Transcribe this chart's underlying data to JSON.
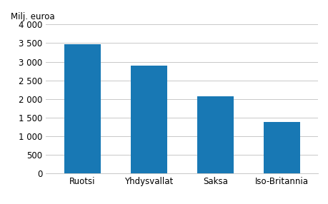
{
  "categories": [
    "Ruotsi",
    "Yhdysvallat",
    "Saksa",
    "Iso-Britannia"
  ],
  "values": [
    3470,
    2890,
    2080,
    1380
  ],
  "bar_color": "#1878b4",
  "ylabel": "Milj. euroa",
  "ylim": [
    0,
    4000
  ],
  "yticks": [
    0,
    500,
    1000,
    1500,
    2000,
    2500,
    3000,
    3500,
    4000
  ],
  "background_color": "#ffffff",
  "grid_color": "#c8c8c8",
  "bar_width": 0.55,
  "label_fontsize": 8.5,
  "ylabel_fontsize": 8.5
}
